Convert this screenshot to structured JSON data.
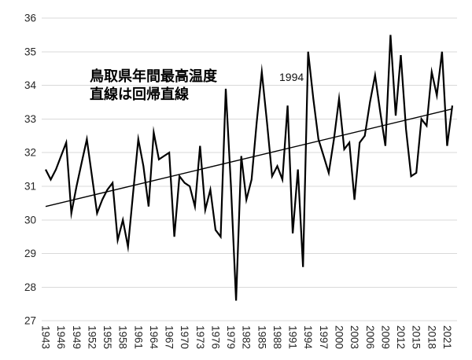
{
  "title": {
    "line1": "鳥取県年間最高温度",
    "line2": "直線は回帰直線"
  },
  "annotation": {
    "label": "1994"
  },
  "colors": {
    "data_line": "#000000",
    "regression_line": "#000000",
    "gridline": "#d9d9d9",
    "tick_label": "#262626",
    "background": "#ffffff"
  },
  "chart_data": {
    "type": "line",
    "title": "鳥取県年間最高温度",
    "subtitle": "直線は回帰直線",
    "xlabel": "",
    "ylabel": "",
    "ylim": [
      27,
      36
    ],
    "grid": "horizontal",
    "legend": "none",
    "years": [
      1943,
      1944,
      1945,
      1946,
      1947,
      1948,
      1949,
      1950,
      1951,
      1952,
      1953,
      1954,
      1955,
      1956,
      1957,
      1958,
      1959,
      1960,
      1961,
      1962,
      1963,
      1964,
      1965,
      1966,
      1967,
      1968,
      1969,
      1970,
      1971,
      1972,
      1973,
      1974,
      1975,
      1976,
      1977,
      1978,
      1979,
      1980,
      1981,
      1982,
      1983,
      1984,
      1985,
      1986,
      1987,
      1988,
      1989,
      1990,
      1991,
      1992,
      1993,
      1994,
      1995,
      1996,
      1997,
      1998,
      1999,
      2000,
      2001,
      2002,
      2003,
      2004,
      2005,
      2006,
      2007,
      2008,
      2009,
      2010,
      2011,
      2012,
      2013,
      2014,
      2015,
      2016,
      2017,
      2018,
      2019,
      2020,
      2021,
      2022
    ],
    "values": [
      31.5,
      31.2,
      31.5,
      31.9,
      32.3,
      30.2,
      31.0,
      31.7,
      32.4,
      31.3,
      30.2,
      30.6,
      30.9,
      31.1,
      29.4,
      30.0,
      29.2,
      30.8,
      32.4,
      31.6,
      30.4,
      32.6,
      31.8,
      31.9,
      32.0,
      29.5,
      31.3,
      31.1,
      31.0,
      30.4,
      32.2,
      30.3,
      30.9,
      29.7,
      29.5,
      33.9,
      31.0,
      27.6,
      31.9,
      30.6,
      31.2,
      32.9,
      34.4,
      32.9,
      31.3,
      31.6,
      31.2,
      33.4,
      29.6,
      31.5,
      28.6,
      35.0,
      33.6,
      32.4,
      31.9,
      31.4,
      32.4,
      33.6,
      32.1,
      32.3,
      30.6,
      32.3,
      32.5,
      33.5,
      34.3,
      33.2,
      32.2,
      35.5,
      33.1,
      34.9,
      32.7,
      31.3,
      31.4,
      33.0,
      32.8,
      34.4,
      33.7,
      35.0,
      32.2,
      33.4
    ],
    "regression": {
      "start_year": 1943,
      "start_value": 30.4,
      "end_year": 2022,
      "end_value": 33.3
    },
    "yticks": [
      27,
      28,
      29,
      30,
      31,
      32,
      33,
      34,
      35,
      36
    ],
    "xticks": [
      1943,
      1946,
      1949,
      1952,
      1955,
      1958,
      1961,
      1964,
      1967,
      1970,
      1973,
      1976,
      1979,
      1982,
      1985,
      1988,
      1991,
      1994,
      1997,
      2000,
      2003,
      2006,
      2009,
      2012,
      2015,
      2018,
      2021
    ],
    "annotated_point": {
      "year": 1994,
      "value": 35.0,
      "label": "1994"
    }
  }
}
